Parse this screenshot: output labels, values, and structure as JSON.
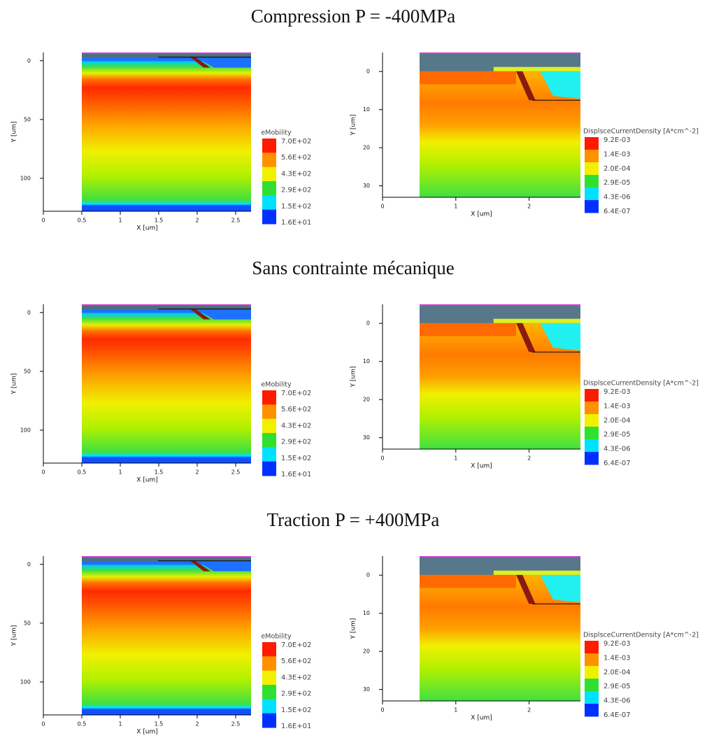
{
  "sections": [
    {
      "title": "Compression P = -400MPa",
      "chart_data": [
        {
          "type": "field",
          "x_label": "X [um]",
          "y_label": "Y [um]",
          "xlim": [
            0,
            2.7
          ],
          "ylim": [
            128,
            -7
          ],
          "xticks": [
            0,
            0.5,
            1,
            1.5,
            2,
            2.5
          ],
          "yticks": [
            0,
            50,
            100
          ],
          "legend": {
            "title": "eMobility",
            "colors": [
              "#ff1a00",
              "#ff9000",
              "#f0f000",
              "#30e030",
              "#00e0ff",
              "#0030ff"
            ],
            "ticks": [
              {
                "value": 700,
                "label": "7.0E+02"
              },
              {
                "value": 560,
                "label": "5.6E+02"
              },
              {
                "value": 430,
                "label": "4.3E+02"
              },
              {
                "value": 290,
                "label": "2.9E+02"
              },
              {
                "value": 150,
                "label": "1.5E+02"
              },
              {
                "value": 16,
                "label": "1.6E+01"
              }
            ]
          }
        },
        {
          "type": "field",
          "x_label": "X [um]",
          "y_label": "Y [um]",
          "xlim": [
            0,
            2.7
          ],
          "ylim": [
            33,
            -5
          ],
          "xticks": [
            0,
            1,
            2
          ],
          "yticks": [
            0,
            10,
            20,
            30
          ],
          "legend": {
            "title": "DisplsceCurrentDensity [A*cm^-2]",
            "colors": [
              "#ff1a00",
              "#ff9000",
              "#f0f000",
              "#30e030",
              "#00e0ff",
              "#0030ff"
            ],
            "ticks": [
              {
                "value": 0.0092,
                "label": "9.2E-03"
              },
              {
                "value": 0.0014,
                "label": "1.4E-03"
              },
              {
                "value": 0.0002,
                "label": "2.0E-04"
              },
              {
                "value": 2.9e-05,
                "label": "2.9E-05"
              },
              {
                "value": 4.3e-06,
                "label": "4.3E-06"
              },
              {
                "value": 6.4e-07,
                "label": "6.4E-07"
              }
            ]
          }
        }
      ]
    },
    {
      "title": "Sans contrainte mécanique",
      "chart_data": [
        {
          "type": "field",
          "x_label": "X [um]",
          "y_label": "Y [um]",
          "xlim": [
            0,
            2.7
          ],
          "ylim": [
            128,
            -7
          ],
          "xticks": [
            0,
            0.5,
            1,
            1.5,
            2,
            2.5
          ],
          "yticks": [
            0,
            50,
            100
          ],
          "legend": {
            "title": "eMobility",
            "colors": [
              "#ff1a00",
              "#ff9000",
              "#f0f000",
              "#30e030",
              "#00e0ff",
              "#0030ff"
            ],
            "ticks": [
              {
                "value": 700,
                "label": "7.0E+02"
              },
              {
                "value": 560,
                "label": "5.6E+02"
              },
              {
                "value": 430,
                "label": "4.3E+02"
              },
              {
                "value": 290,
                "label": "2.9E+02"
              },
              {
                "value": 150,
                "label": "1.5E+02"
              },
              {
                "value": 16,
                "label": "1.6E+01"
              }
            ]
          }
        },
        {
          "type": "field",
          "x_label": "X [um]",
          "y_label": "Y [um]",
          "xlim": [
            0,
            2.7
          ],
          "ylim": [
            33,
            -5
          ],
          "xticks": [
            0,
            1,
            2
          ],
          "yticks": [
            0,
            10,
            20,
            30
          ],
          "legend": {
            "title": "DisplsceCurrentDensity [A*cm^-2]",
            "colors": [
              "#ff1a00",
              "#ff9000",
              "#f0f000",
              "#30e030",
              "#00e0ff",
              "#0030ff"
            ],
            "ticks": [
              {
                "value": 0.0092,
                "label": "9.2E-03"
              },
              {
                "value": 0.0014,
                "label": "1.4E-03"
              },
              {
                "value": 0.0002,
                "label": "2.0E-04"
              },
              {
                "value": 2.9e-05,
                "label": "2.9E-05"
              },
              {
                "value": 4.3e-06,
                "label": "4.3E-06"
              },
              {
                "value": 6.4e-07,
                "label": "6.4E-07"
              }
            ]
          }
        }
      ]
    },
    {
      "title": "Traction P = +400MPa",
      "chart_data": [
        {
          "type": "field",
          "x_label": "X [um]",
          "y_label": "Y [um]",
          "xlim": [
            0,
            2.7
          ],
          "ylim": [
            128,
            -7
          ],
          "xticks": [
            0,
            0.5,
            1,
            1.5,
            2,
            2.5
          ],
          "yticks": [
            0,
            50,
            100
          ],
          "legend": {
            "title": "eMobility",
            "colors": [
              "#ff1a00",
              "#ff9000",
              "#f0f000",
              "#30e030",
              "#00e0ff",
              "#0030ff"
            ],
            "ticks": [
              {
                "value": 700,
                "label": "7.0E+02"
              },
              {
                "value": 560,
                "label": "5.6E+02"
              },
              {
                "value": 430,
                "label": "4.3E+02"
              },
              {
                "value": 290,
                "label": "2.9E+02"
              },
              {
                "value": 150,
                "label": "1.5E+02"
              },
              {
                "value": 16,
                "label": "1.6E+01"
              }
            ]
          }
        },
        {
          "type": "field",
          "x_label": "X [um]",
          "y_label": "Y [um]",
          "xlim": [
            0,
            2.7
          ],
          "ylim": [
            33,
            -5
          ],
          "xticks": [
            0,
            1,
            2
          ],
          "yticks": [
            0,
            10,
            20,
            30
          ],
          "legend": {
            "title": "DisplsceCurrentDensity [A*cm^-2]",
            "colors": [
              "#ff1a00",
              "#ff9000",
              "#f0f000",
              "#30e030",
              "#00e0ff",
              "#0030ff"
            ],
            "ticks": [
              {
                "value": 0.0092,
                "label": "9.2E-03"
              },
              {
                "value": 0.0014,
                "label": "1.4E-03"
              },
              {
                "value": 0.0002,
                "label": "2.0E-04"
              },
              {
                "value": 2.9e-05,
                "label": "2.9E-05"
              },
              {
                "value": 4.3e-06,
                "label": "4.3E-06"
              },
              {
                "value": 6.4e-07,
                "label": "6.4E-07"
              }
            ]
          }
        }
      ]
    }
  ]
}
